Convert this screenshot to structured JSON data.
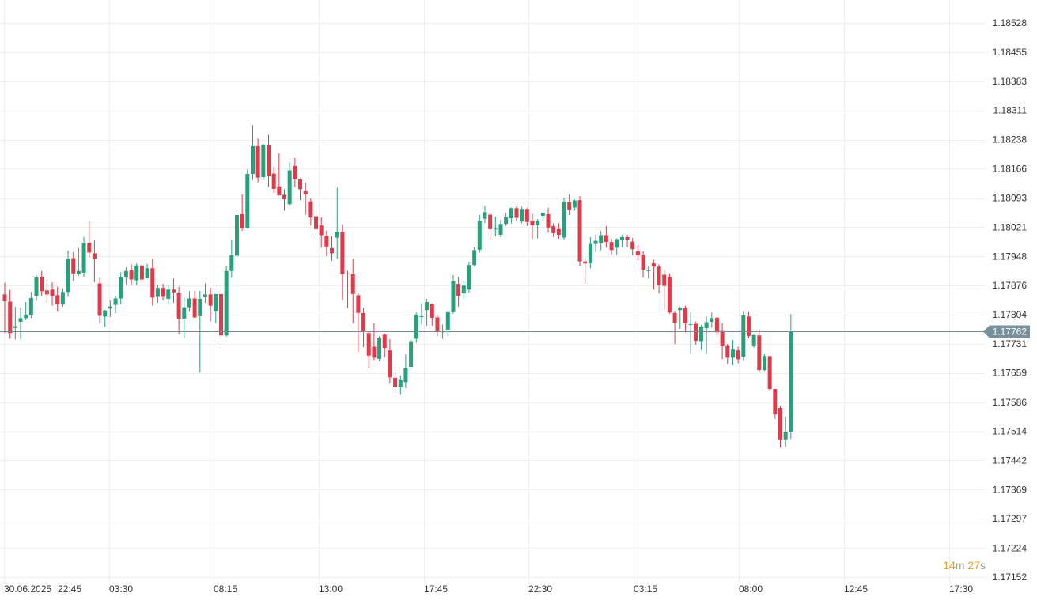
{
  "chart_data": {
    "type": "candlestick",
    "instrument_note": "",
    "x_ticks": [
      "30.06.2025",
      "22:45",
      "03:30",
      "08:15",
      "13:00",
      "17:45",
      "22:30",
      "03:15",
      "08:00",
      "12:45",
      "17:30"
    ],
    "y_ticks": [
      "1.18528",
      "1.18455",
      "1.18383",
      "1.18311",
      "1.18238",
      "1.18166",
      "1.18093",
      "1.18021",
      "1.17948",
      "1.17876",
      "1.17804",
      "1.17731",
      "1.17659",
      "1.17586",
      "1.17514",
      "1.17442",
      "1.17369",
      "1.17297",
      "1.17224",
      "1.17152"
    ],
    "ylim": [
      1.17152,
      1.18528
    ],
    "current_price": 1.17762,
    "current_price_label": "1.17762",
    "grid": true,
    "colors": {
      "up": "#26a17b",
      "down": "#e0394a",
      "grid": "#eeeeee",
      "price_line": "#7b8a92",
      "price_tag": "#78909c"
    },
    "candles": [
      [
        1.17854,
        1.17883,
        1.17758,
        1.17837
      ],
      [
        1.17836,
        1.17865,
        1.17744,
        1.17758
      ],
      [
        1.17771,
        1.17823,
        1.17742,
        1.17775
      ],
      [
        1.17786,
        1.17821,
        1.17742,
        1.17795
      ],
      [
        1.17795,
        1.17835,
        1.1779,
        1.17804
      ],
      [
        1.17802,
        1.1786,
        1.17795,
        1.17845
      ],
      [
        1.1785,
        1.17901,
        1.17838,
        1.17896
      ],
      [
        1.17898,
        1.17912,
        1.1785,
        1.17862
      ],
      [
        1.17864,
        1.17891,
        1.17833,
        1.17854
      ],
      [
        1.17866,
        1.17884,
        1.17826,
        1.1785
      ],
      [
        1.17852,
        1.17873,
        1.17811,
        1.17829
      ],
      [
        1.17829,
        1.17869,
        1.17823,
        1.1786
      ],
      [
        1.1786,
        1.17963,
        1.17848,
        1.17943
      ],
      [
        1.17944,
        1.17959,
        1.17888,
        1.17906
      ],
      [
        1.17904,
        1.17969,
        1.179,
        1.17912
      ],
      [
        1.17908,
        1.17997,
        1.17898,
        1.17982
      ],
      [
        1.17982,
        1.18035,
        1.17945,
        1.17958
      ],
      [
        1.17956,
        1.17988,
        1.17884,
        1.17942
      ],
      [
        1.17881,
        1.17895,
        1.17783,
        1.17801
      ],
      [
        1.17799,
        1.17816,
        1.17773,
        1.17814
      ],
      [
        1.17819,
        1.17839,
        1.17798,
        1.17824
      ],
      [
        1.17828,
        1.1785,
        1.17807,
        1.17844
      ],
      [
        1.17844,
        1.17909,
        1.17829,
        1.17896
      ],
      [
        1.17896,
        1.17921,
        1.17879,
        1.17912
      ],
      [
        1.17914,
        1.17929,
        1.17879,
        1.17891
      ],
      [
        1.17889,
        1.17931,
        1.17877,
        1.17926
      ],
      [
        1.17926,
        1.17933,
        1.17881,
        1.17891
      ],
      [
        1.17894,
        1.1793,
        1.17893,
        1.17919
      ],
      [
        1.17919,
        1.17941,
        1.17826,
        1.17846
      ],
      [
        1.17848,
        1.17878,
        1.17833,
        1.1787
      ],
      [
        1.1787,
        1.1788,
        1.17839,
        1.17848
      ],
      [
        1.17843,
        1.17878,
        1.1783,
        1.17866
      ],
      [
        1.17866,
        1.17893,
        1.17833,
        1.17859
      ],
      [
        1.17858,
        1.17873,
        1.17756,
        1.17794
      ],
      [
        1.17794,
        1.17847,
        1.17746,
        1.17822
      ],
      [
        1.17822,
        1.17862,
        1.17811,
        1.17844
      ],
      [
        1.17844,
        1.17863,
        1.17795,
        1.17797
      ],
      [
        1.178,
        1.17863,
        1.1766,
        1.17843
      ],
      [
        1.17847,
        1.17881,
        1.17833,
        1.17854
      ],
      [
        1.17854,
        1.1787,
        1.17787,
        1.17826
      ],
      [
        1.17812,
        1.17855,
        1.17784,
        1.17855
      ],
      [
        1.17855,
        1.17876,
        1.17727,
        1.17752
      ],
      [
        1.17752,
        1.17925,
        1.17749,
        1.17912
      ],
      [
        1.17912,
        1.1799,
        1.17896,
        1.17951
      ],
      [
        1.1795,
        1.18064,
        1.17946,
        1.18051
      ],
      [
        1.18053,
        1.18102,
        1.18012,
        1.18018
      ],
      [
        1.18019,
        1.18164,
        1.18017,
        1.18153
      ],
      [
        1.18153,
        1.18274,
        1.18138,
        1.18222
      ],
      [
        1.18222,
        1.18241,
        1.18132,
        1.18144
      ],
      [
        1.18145,
        1.18228,
        1.18138,
        1.18225
      ],
      [
        1.18224,
        1.1825,
        1.18121,
        1.18148
      ],
      [
        1.18154,
        1.18171,
        1.18106,
        1.18116
      ],
      [
        1.18122,
        1.18204,
        1.18099,
        1.181
      ],
      [
        1.18101,
        1.18115,
        1.18062,
        1.1809
      ],
      [
        1.18078,
        1.18183,
        1.18074,
        1.18162
      ],
      [
        1.18173,
        1.18193,
        1.1812,
        1.1814
      ],
      [
        1.1814,
        1.18142,
        1.18088,
        1.18115
      ],
      [
        1.18112,
        1.18132,
        1.18052,
        1.18102
      ],
      [
        1.18085,
        1.18092,
        1.18025,
        1.18045
      ],
      [
        1.18048,
        1.1806,
        1.18001,
        1.18016
      ],
      [
        1.18025,
        1.18045,
        1.1797,
        1.18001
      ],
      [
        1.18,
        1.18013,
        1.17949,
        1.17973
      ],
      [
        1.17969,
        1.17998,
        1.17937,
        1.17956
      ],
      [
        1.17995,
        1.18119,
        1.17942,
        1.18009
      ],
      [
        1.18009,
        1.18028,
        1.1784,
        1.17904
      ],
      [
        1.17906,
        1.17913,
        1.1782,
        1.17905
      ],
      [
        1.17905,
        1.17941,
        1.17782,
        1.17855
      ],
      [
        1.17852,
        1.17858,
        1.17711,
        1.17808
      ],
      [
        1.17808,
        1.17821,
        1.17723,
        1.17762
      ],
      [
        1.17758,
        1.17761,
        1.17672,
        1.17702
      ],
      [
        1.17724,
        1.17782,
        1.17691,
        1.17697
      ],
      [
        1.17694,
        1.17751,
        1.17688,
        1.17746
      ],
      [
        1.17754,
        1.17757,
        1.17698,
        1.17721
      ],
      [
        1.17715,
        1.17743,
        1.17633,
        1.17648
      ],
      [
        1.17647,
        1.17669,
        1.17608,
        1.17624
      ],
      [
        1.17623,
        1.17653,
        1.17605,
        1.17641
      ],
      [
        1.17636,
        1.17705,
        1.17621,
        1.17671
      ],
      [
        1.17674,
        1.17748,
        1.17665,
        1.17738
      ],
      [
        1.17744,
        1.17809,
        1.17734,
        1.17803
      ],
      [
        1.17799,
        1.17832,
        1.1778,
        1.178
      ],
      [
        1.17815,
        1.17843,
        1.17776,
        1.17835
      ],
      [
        1.1783,
        1.17832,
        1.17776,
        1.17796
      ],
      [
        1.17797,
        1.17803,
        1.1775,
        1.17762
      ],
      [
        1.1776,
        1.17779,
        1.17744,
        1.17762
      ],
      [
        1.17766,
        1.17808,
        1.17751,
        1.1781
      ],
      [
        1.1781,
        1.17902,
        1.17806,
        1.17887
      ],
      [
        1.1788,
        1.17897,
        1.17823,
        1.1785
      ],
      [
        1.17857,
        1.17888,
        1.17842,
        1.17876
      ],
      [
        1.17866,
        1.17935,
        1.17858,
        1.17927
      ],
      [
        1.17927,
        1.17971,
        1.17924,
        1.17964
      ],
      [
        1.17965,
        1.18052,
        1.17958,
        1.18036
      ],
      [
        1.18042,
        1.18074,
        1.18031,
        1.18058
      ],
      [
        1.18052,
        1.18055,
        1.1799,
        1.18016
      ],
      [
        1.18017,
        1.18047,
        1.17998,
        1.18017
      ],
      [
        1.18002,
        1.18039,
        1.17996,
        1.18029
      ],
      [
        1.18029,
        1.18056,
        1.18024,
        1.18047
      ],
      [
        1.18043,
        1.1807,
        1.1803,
        1.18068
      ],
      [
        1.18068,
        1.18073,
        1.18036,
        1.18044
      ],
      [
        1.18035,
        1.18072,
        1.1803,
        1.18066
      ],
      [
        1.18066,
        1.18069,
        1.18024,
        1.18034
      ],
      [
        1.18037,
        1.18055,
        1.17992,
        1.18026
      ],
      [
        1.18026,
        1.18041,
        1.17993,
        1.18036
      ],
      [
        1.18049,
        1.18057,
        1.18037,
        1.18056
      ],
      [
        1.18053,
        1.18069,
        1.18007,
        1.1802
      ],
      [
        1.18024,
        1.18031,
        1.17996,
        1.18006
      ],
      [
        1.18016,
        1.18031,
        1.17992,
        1.18002
      ],
      [
        1.17995,
        1.18093,
        1.17989,
        1.18084
      ],
      [
        1.18083,
        1.18102,
        1.18051,
        1.18064
      ],
      [
        1.1807,
        1.1809,
        1.18062,
        1.18087
      ],
      [
        1.18088,
        1.18098,
        1.17925,
        1.17936
      ],
      [
        1.17936,
        1.17946,
        1.1788,
        1.17931
      ],
      [
        1.17931,
        1.17996,
        1.17919,
        1.17979
      ],
      [
        1.17979,
        1.18002,
        1.17959,
        1.17987
      ],
      [
        1.17981,
        1.18012,
        1.17963,
        1.18001
      ],
      [
        1.18001,
        1.18024,
        1.1797,
        1.17984
      ],
      [
        1.17984,
        1.17992,
        1.17952,
        1.17964
      ],
      [
        1.1797,
        1.17993,
        1.17952,
        1.17991
      ],
      [
        1.17988,
        1.18002,
        1.17971,
        1.17996
      ],
      [
        1.17996,
        1.18002,
        1.17972,
        1.1799
      ],
      [
        1.17985,
        1.17994,
        1.17951,
        1.17966
      ],
      [
        1.17961,
        1.17977,
        1.17938,
        1.17952
      ],
      [
        1.17952,
        1.17961,
        1.17896,
        1.17915
      ],
      [
        1.17913,
        1.17925,
        1.17893,
        1.17914
      ],
      [
        1.17931,
        1.1794,
        1.17866,
        1.17923
      ],
      [
        1.17923,
        1.17929,
        1.17856,
        1.17878
      ],
      [
        1.17903,
        1.17915,
        1.17817,
        1.17875
      ],
      [
        1.17897,
        1.17906,
        1.17806,
        1.17809
      ],
      [
        1.17808,
        1.17812,
        1.17731,
        1.17784
      ],
      [
        1.17815,
        1.17824,
        1.17769,
        1.1782
      ],
      [
        1.1782,
        1.17826,
        1.1776,
        1.17782
      ],
      [
        1.17779,
        1.17809,
        1.17706,
        1.1778
      ],
      [
        1.17781,
        1.17787,
        1.17729,
        1.17739
      ],
      [
        1.17738,
        1.17778,
        1.17716,
        1.17774
      ],
      [
        1.1777,
        1.17799,
        1.17706,
        1.17785
      ],
      [
        1.17786,
        1.17809,
        1.17772,
        1.17795
      ],
      [
        1.17796,
        1.17798,
        1.17752,
        1.1776
      ],
      [
        1.17763,
        1.17783,
        1.17693,
        1.17725
      ],
      [
        1.17726,
        1.17731,
        1.17681,
        1.17697
      ],
      [
        1.17697,
        1.17741,
        1.17678,
        1.17717
      ],
      [
        1.17715,
        1.17724,
        1.17683,
        1.17693
      ],
      [
        1.17699,
        1.17811,
        1.17691,
        1.17802
      ],
      [
        1.17799,
        1.1781,
        1.17745,
        1.17751
      ],
      [
        1.17725,
        1.17754,
        1.17722,
        1.17753
      ],
      [
        1.17752,
        1.17767,
        1.1766,
        1.17666
      ],
      [
        1.17666,
        1.17705,
        1.17664,
        1.17701
      ],
      [
        1.17701,
        1.17701,
        1.17615,
        1.17619
      ],
      [
        1.17619,
        1.17619,
        1.17545,
        1.17556
      ],
      [
        1.17572,
        1.17577,
        1.17473,
        1.17494
      ],
      [
        1.17494,
        1.17551,
        1.17475,
        1.17513
      ],
      [
        1.17513,
        1.17805,
        1.17495,
        1.17762
      ]
    ]
  },
  "countdown": {
    "minutes": "14",
    "minutes_unit": "m",
    "seconds": "27",
    "seconds_unit": "s"
  }
}
